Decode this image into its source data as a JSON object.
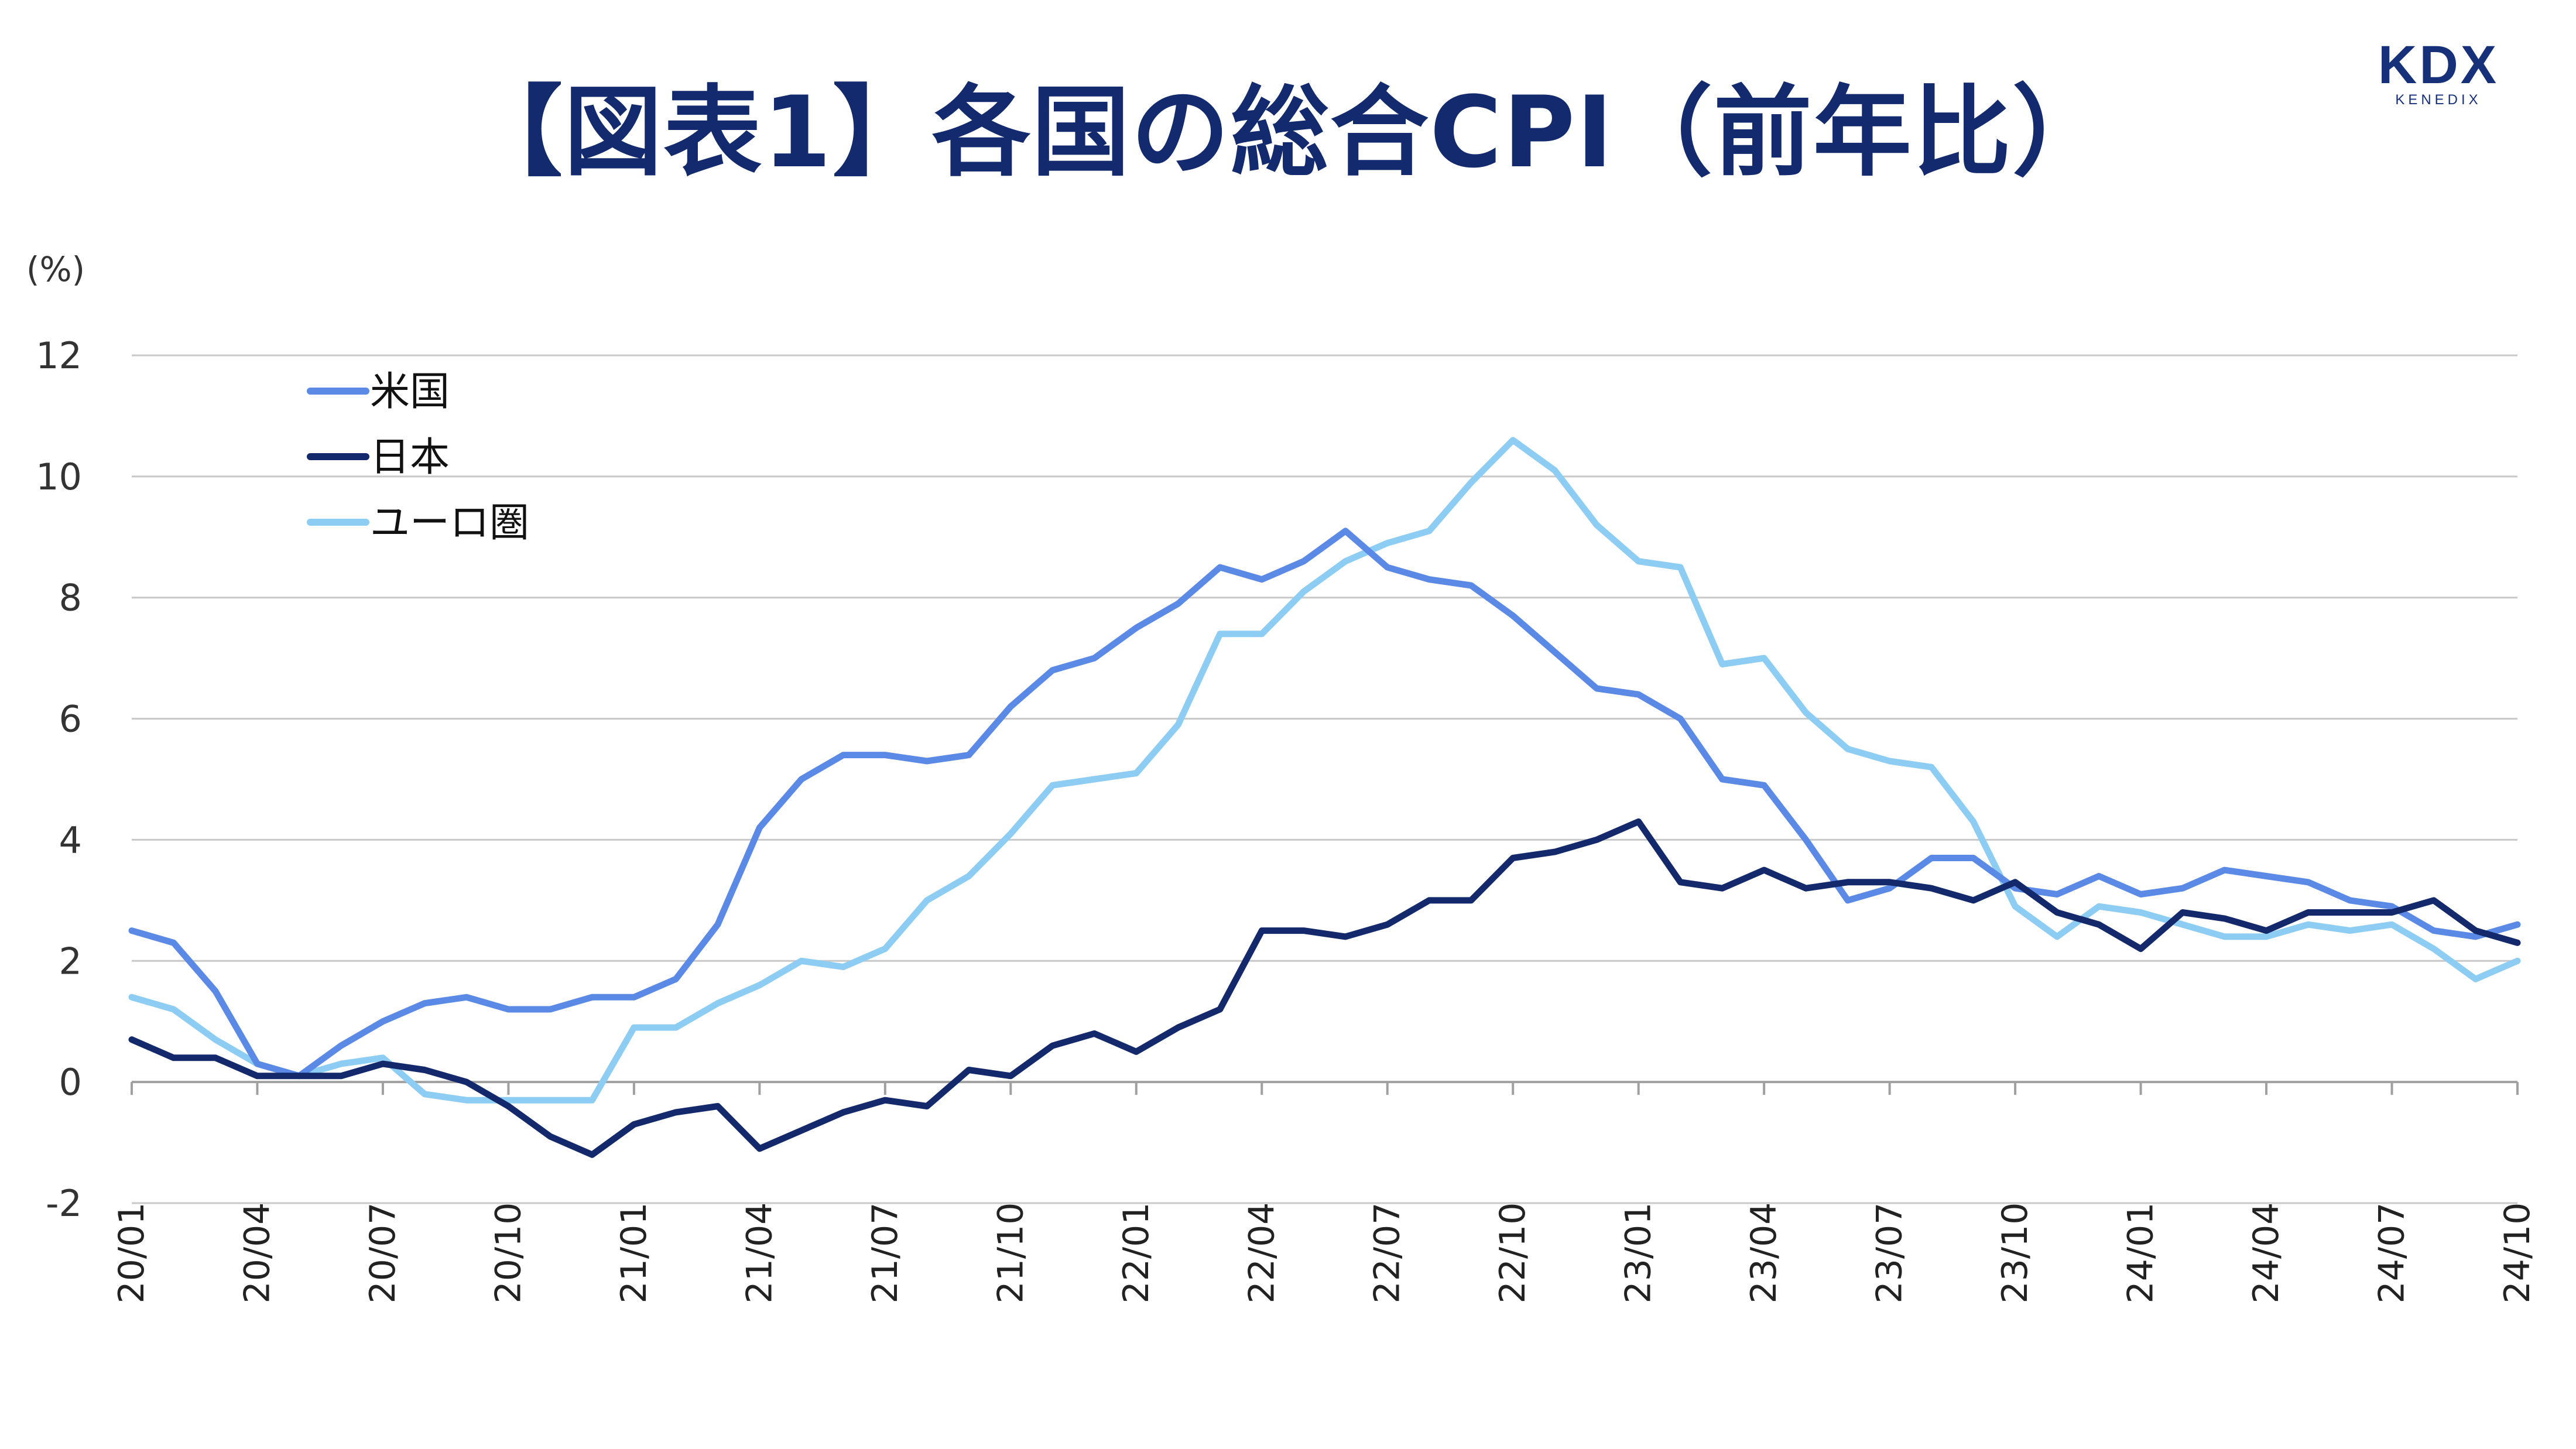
{
  "header": {
    "title": "【図表1】各国の総合CPI（前年比）",
    "logo_text": "KDX",
    "logo_subtext": "KENEDIX"
  },
  "colors": {
    "title": "#132b6e",
    "us": "#5b8ae6",
    "japan": "#13296b",
    "euro": "#8ecdf3",
    "grid": "#c8c8c8"
  },
  "chart_data": {
    "type": "line",
    "title": "【図表1】各国の総合CPI（前年比）",
    "ylabel": "(%)",
    "xlabel": "",
    "ylim": [
      -2,
      12
    ],
    "yticks": [
      "-2",
      "0",
      "2",
      "4",
      "6",
      "8",
      "10",
      "12"
    ],
    "ytick_values": [
      -2,
      0,
      2,
      4,
      6,
      8,
      10,
      12
    ],
    "grid": true,
    "legend_position": "top-left",
    "x": [
      "20/01",
      "20/02",
      "20/03",
      "20/04",
      "20/05",
      "20/06",
      "20/07",
      "20/08",
      "20/09",
      "20/10",
      "20/11",
      "20/12",
      "21/01",
      "21/02",
      "21/03",
      "21/04",
      "21/05",
      "21/06",
      "21/07",
      "21/08",
      "21/09",
      "21/10",
      "21/11",
      "21/12",
      "22/01",
      "22/02",
      "22/03",
      "22/04",
      "22/05",
      "22/06",
      "22/07",
      "22/08",
      "22/09",
      "22/10",
      "22/11",
      "22/12",
      "23/01",
      "23/02",
      "23/03",
      "23/04",
      "23/05",
      "23/06",
      "23/07",
      "23/08",
      "23/09",
      "23/10",
      "23/11",
      "23/12",
      "24/01",
      "24/02",
      "24/03",
      "24/04",
      "24/05",
      "24/06",
      "24/07",
      "24/08",
      "24/09",
      "24/10"
    ],
    "xtick_labels": [
      "20/01",
      "20/04",
      "20/07",
      "20/10",
      "21/01",
      "21/04",
      "21/07",
      "21/10",
      "22/01",
      "22/04",
      "22/07",
      "22/10",
      "23/01",
      "23/04",
      "23/07",
      "23/10",
      "24/01",
      "24/04",
      "24/07",
      "24/10"
    ],
    "series": [
      {
        "name": "米国",
        "color": "#5b8ae6",
        "values": [
          2.5,
          2.3,
          1.5,
          0.3,
          0.1,
          0.6,
          1.0,
          1.3,
          1.4,
          1.2,
          1.2,
          1.4,
          1.4,
          1.7,
          2.6,
          4.2,
          5.0,
          5.4,
          5.4,
          5.3,
          5.4,
          6.2,
          6.8,
          7.0,
          7.5,
          7.9,
          8.5,
          8.3,
          8.6,
          9.1,
          8.5,
          8.3,
          8.2,
          7.7,
          7.1,
          6.5,
          6.4,
          6.0,
          5.0,
          4.9,
          4.0,
          3.0,
          3.2,
          3.7,
          3.7,
          3.2,
          3.1,
          3.4,
          3.1,
          3.2,
          3.5,
          3.4,
          3.3,
          3.0,
          2.9,
          2.5,
          2.4,
          2.6
        ]
      },
      {
        "name": "日本",
        "color": "#13296b",
        "values": [
          0.7,
          0.4,
          0.4,
          0.1,
          0.1,
          0.1,
          0.3,
          0.2,
          0.0,
          -0.4,
          -0.9,
          -1.2,
          -0.7,
          -0.5,
          -0.4,
          -1.1,
          -0.8,
          -0.5,
          -0.3,
          -0.4,
          0.2,
          0.1,
          0.6,
          0.8,
          0.5,
          0.9,
          1.2,
          2.5,
          2.5,
          2.4,
          2.6,
          3.0,
          3.0,
          3.7,
          3.8,
          4.0,
          4.3,
          3.3,
          3.2,
          3.5,
          3.2,
          3.3,
          3.3,
          3.2,
          3.0,
          3.3,
          2.8,
          2.6,
          2.2,
          2.8,
          2.7,
          2.5,
          2.8,
          2.8,
          2.8,
          3.0,
          2.5,
          2.3
        ]
      },
      {
        "name": "ユーロ圏",
        "color": "#8ecdf3",
        "values": [
          1.4,
          1.2,
          0.7,
          0.3,
          0.1,
          0.3,
          0.4,
          -0.2,
          -0.3,
          -0.3,
          -0.3,
          -0.3,
          0.9,
          0.9,
          1.3,
          1.6,
          2.0,
          1.9,
          2.2,
          3.0,
          3.4,
          4.1,
          4.9,
          5.0,
          5.1,
          5.9,
          7.4,
          7.4,
          8.1,
          8.6,
          8.9,
          9.1,
          9.9,
          10.6,
          10.1,
          9.2,
          8.6,
          8.5,
          6.9,
          7.0,
          6.1,
          5.5,
          5.3,
          5.2,
          4.3,
          2.9,
          2.4,
          2.9,
          2.8,
          2.6,
          2.4,
          2.4,
          2.6,
          2.5,
          2.6,
          2.2,
          1.7,
          2.0
        ]
      }
    ]
  }
}
